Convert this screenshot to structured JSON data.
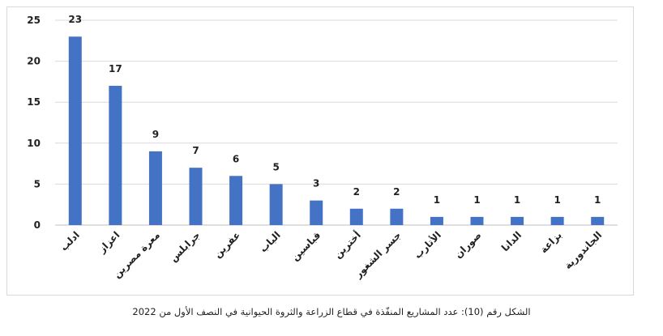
{
  "chart_data": {
    "type": "bar",
    "categories": [
      "ادلب",
      "اعزاز",
      "معرة مصرين",
      "جرابلس",
      "عفرين",
      "الباب",
      "قباسين",
      "أخترين",
      "جسر الشغور",
      "الأتارب",
      "صوران",
      "الدانا",
      "بزاعة",
      "الجاندورية"
    ],
    "values": [
      23,
      17,
      9,
      7,
      6,
      5,
      3,
      2,
      2,
      1,
      1,
      1,
      1,
      1
    ],
    "yticks": [
      "0",
      "5",
      "10",
      "15",
      "20",
      "25"
    ],
    "ylim": [
      0,
      25
    ],
    "grid": true,
    "bar_color": "#4472c4"
  },
  "caption": "الشكل رقم (10): عدد المشاريع المنفّذة في قطاع الزراعة والثروة الحيوانية في النصف الأول من 2022"
}
